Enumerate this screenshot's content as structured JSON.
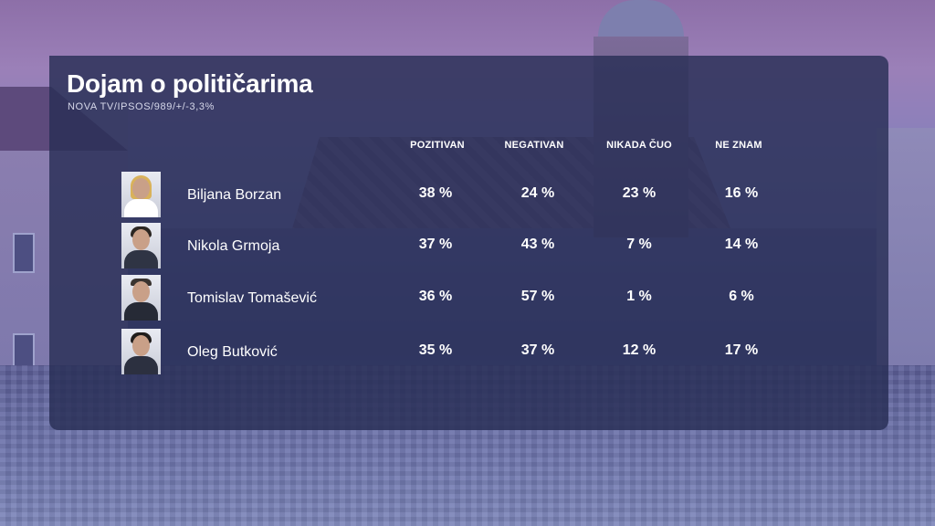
{
  "title": "Dojam o političarima",
  "subtitle": "NOVA TV/IPSOS/989/+/-3,3%",
  "columns": [
    "POZITIVAN",
    "NEGATIVAN",
    "NIKADA ČUO",
    "NE ZNAM"
  ],
  "rows": [
    {
      "name": "Biljana Borzan",
      "values": [
        "38 %",
        "24 %",
        "23 %",
        "16 %"
      ]
    },
    {
      "name": "Nikola Grmoja",
      "values": [
        "37 %",
        "43 %",
        "7 %",
        "14 %"
      ]
    },
    {
      "name": "Tomislav Tomašević",
      "values": [
        "36 %",
        "57 %",
        "1 %",
        "6 %"
      ]
    },
    {
      "name": "Oleg Butković",
      "values": [
        "35 %",
        "37 %",
        "12 %",
        "17 %"
      ]
    }
  ],
  "colors": {
    "panel": "#282e56",
    "text": "#ffffff",
    "background": "#6c6aa6"
  }
}
